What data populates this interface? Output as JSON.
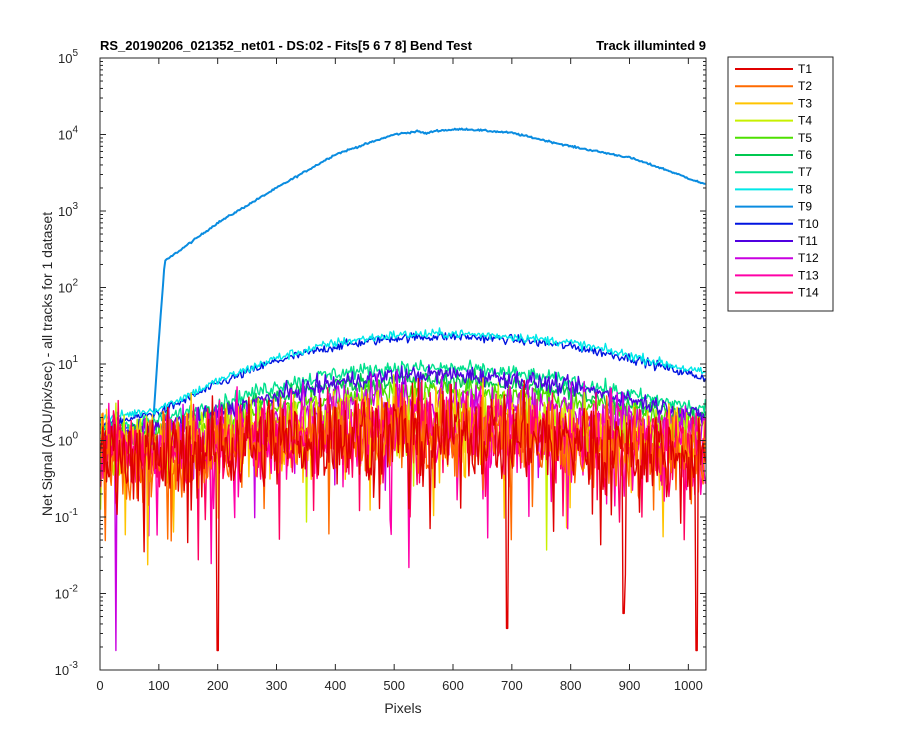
{
  "chart_data": {
    "type": "line",
    "title": "RS_20190206_021352_net01 - DS:02 - Fits[5  6  7  8]    Bend Test",
    "title_right": "Track illuminted 9",
    "xlabel": "Pixels",
    "ylabel": "Net Signal (ADU/pix/sec) - all tracks for 1 dataset",
    "xlim": [
      0,
      1030
    ],
    "ylim_log10": [
      -3,
      5
    ],
    "y_scale": "log",
    "grid": false,
    "legend_position": "outside-right",
    "x_ticks": [
      "0",
      "100",
      "200",
      "300",
      "400",
      "500",
      "600",
      "700",
      "800",
      "900",
      "1000"
    ],
    "y_ticks": [
      {
        "base": "10",
        "exp": "-3"
      },
      {
        "base": "10",
        "exp": "-2"
      },
      {
        "base": "10",
        "exp": "-1"
      },
      {
        "base": "10",
        "exp": "0"
      },
      {
        "base": "10",
        "exp": "1"
      },
      {
        "base": "10",
        "exp": "2"
      },
      {
        "base": "10",
        "exp": "3"
      },
      {
        "base": "10",
        "exp": "4"
      },
      {
        "base": "10",
        "exp": "5"
      }
    ],
    "series": [
      {
        "name": "T1",
        "color": "#e00000",
        "x": [
          0,
          100,
          200,
          300,
          400,
          500,
          600,
          700,
          800,
          900,
          1030
        ],
        "y": [
          0.7,
          0.6,
          0.8,
          1.0,
          1.1,
          1.2,
          1.2,
          1.1,
          1.0,
          0.8,
          0.6
        ]
      },
      {
        "name": "T2",
        "color": "#ff6a00",
        "x": [
          0,
          100,
          200,
          300,
          400,
          500,
          600,
          700,
          800,
          900,
          1030
        ],
        "y": [
          0.7,
          0.6,
          0.8,
          1.0,
          1.1,
          1.2,
          1.2,
          1.1,
          1.0,
          0.8,
          0.6
        ]
      },
      {
        "name": "T3",
        "color": "#ffc400",
        "x": [
          0,
          100,
          200,
          300,
          400,
          500,
          600,
          700,
          800,
          900,
          1030
        ],
        "y": [
          0.8,
          0.7,
          0.9,
          1.1,
          1.3,
          1.4,
          1.4,
          1.3,
          1.1,
          0.9,
          0.7
        ]
      },
      {
        "name": "T4",
        "color": "#c8f000",
        "x": [
          0,
          100,
          200,
          300,
          400,
          500,
          600,
          700,
          800,
          900,
          1030
        ],
        "y": [
          0.9,
          0.9,
          1.1,
          1.4,
          1.7,
          1.9,
          1.9,
          1.7,
          1.4,
          1.1,
          0.9
        ]
      },
      {
        "name": "T5",
        "color": "#4ee000",
        "x": [
          0,
          100,
          200,
          300,
          400,
          500,
          600,
          700,
          800,
          900,
          1030
        ],
        "y": [
          1.1,
          1.2,
          1.7,
          2.6,
          3.6,
          4.5,
          4.6,
          4.0,
          3.2,
          2.3,
          1.5
        ]
      },
      {
        "name": "T6",
        "color": "#00c850",
        "x": [
          0,
          100,
          200,
          300,
          400,
          500,
          600,
          700,
          800,
          900,
          1030
        ],
        "y": [
          1.3,
          1.5,
          2.3,
          3.8,
          5.4,
          6.2,
          6.2,
          5.5,
          4.2,
          3.0,
          1.9
        ]
      },
      {
        "name": "T7",
        "color": "#00e08c",
        "x": [
          0,
          100,
          200,
          300,
          400,
          500,
          600,
          700,
          800,
          900,
          1030
        ],
        "y": [
          1.5,
          1.8,
          3.0,
          5.2,
          7.5,
          8.9,
          8.8,
          7.6,
          5.9,
          4.0,
          2.5
        ]
      },
      {
        "name": "T8",
        "color": "#00e8e8",
        "x": [
          0,
          100,
          200,
          300,
          400,
          500,
          600,
          700,
          800,
          900,
          1030
        ],
        "y": [
          1.9,
          2.6,
          6.0,
          12.0,
          19.0,
          24.0,
          25.0,
          23.0,
          19.0,
          13.0,
          7.5
        ]
      },
      {
        "name": "T9",
        "color": "#0a8ce0",
        "x": [
          0,
          90,
          97,
          110,
          200,
          300,
          400,
          500,
          540,
          555,
          570,
          620,
          700,
          800,
          900,
          960,
          1030
        ],
        "y": [
          1.4,
          1.5,
          10.0,
          220.0,
          700.0,
          2000.0,
          5500.0,
          10000.0,
          11000.0,
          10300.0,
          11200.0,
          11800.0,
          10500.0,
          7000.0,
          5000.0,
          3500.0,
          2200.0
        ]
      },
      {
        "name": "T10",
        "color": "#0014e0",
        "x": [
          0,
          100,
          200,
          300,
          400,
          500,
          600,
          700,
          800,
          900,
          1030
        ],
        "y": [
          1.6,
          2.3,
          5.5,
          11.0,
          17.0,
          22.0,
          23.0,
          21.0,
          17.0,
          12.0,
          6.5
        ]
      },
      {
        "name": "T11",
        "color": "#5000e0",
        "x": [
          0,
          100,
          200,
          300,
          400,
          500,
          600,
          700,
          800,
          900,
          1030
        ],
        "y": [
          1.2,
          1.5,
          2.3,
          3.8,
          5.7,
          7.1,
          7.3,
          6.5,
          5.0,
          3.5,
          2.0
        ]
      },
      {
        "name": "T12",
        "color": "#c800e0",
        "x": [
          0,
          100,
          200,
          300,
          400,
          500,
          600,
          700,
          800,
          900,
          1030
        ],
        "y": [
          1.0,
          1.1,
          1.4,
          2.1,
          2.8,
          3.3,
          3.3,
          2.9,
          2.3,
          1.7,
          1.2
        ]
      },
      {
        "name": "T13",
        "color": "#ff00a8",
        "x": [
          0,
          100,
          200,
          300,
          400,
          500,
          600,
          700,
          800,
          900,
          1030
        ],
        "y": [
          0.8,
          0.7,
          0.9,
          1.1,
          1.3,
          1.4,
          1.4,
          1.3,
          1.1,
          0.9,
          0.7
        ]
      },
      {
        "name": "T14",
        "color": "#ff0060",
        "x": [
          0,
          100,
          200,
          300,
          400,
          500,
          600,
          700,
          800,
          900,
          1030
        ],
        "y": [
          0.8,
          0.7,
          0.9,
          1.1,
          1.3,
          1.4,
          1.4,
          1.3,
          1.1,
          0.9,
          0.7
        ]
      }
    ],
    "annotations_notable_dips": [
      {
        "series": "T12",
        "x": 27,
        "y": 0.0018
      },
      {
        "series": "T1",
        "x": 200,
        "y": 0.0018
      },
      {
        "series": "T1",
        "x": 692,
        "y": 0.0035
      },
      {
        "series": "T1",
        "x": 1014,
        "y": 0.0018
      },
      {
        "series": "T1",
        "x": 890,
        "y": 0.0055
      }
    ]
  }
}
